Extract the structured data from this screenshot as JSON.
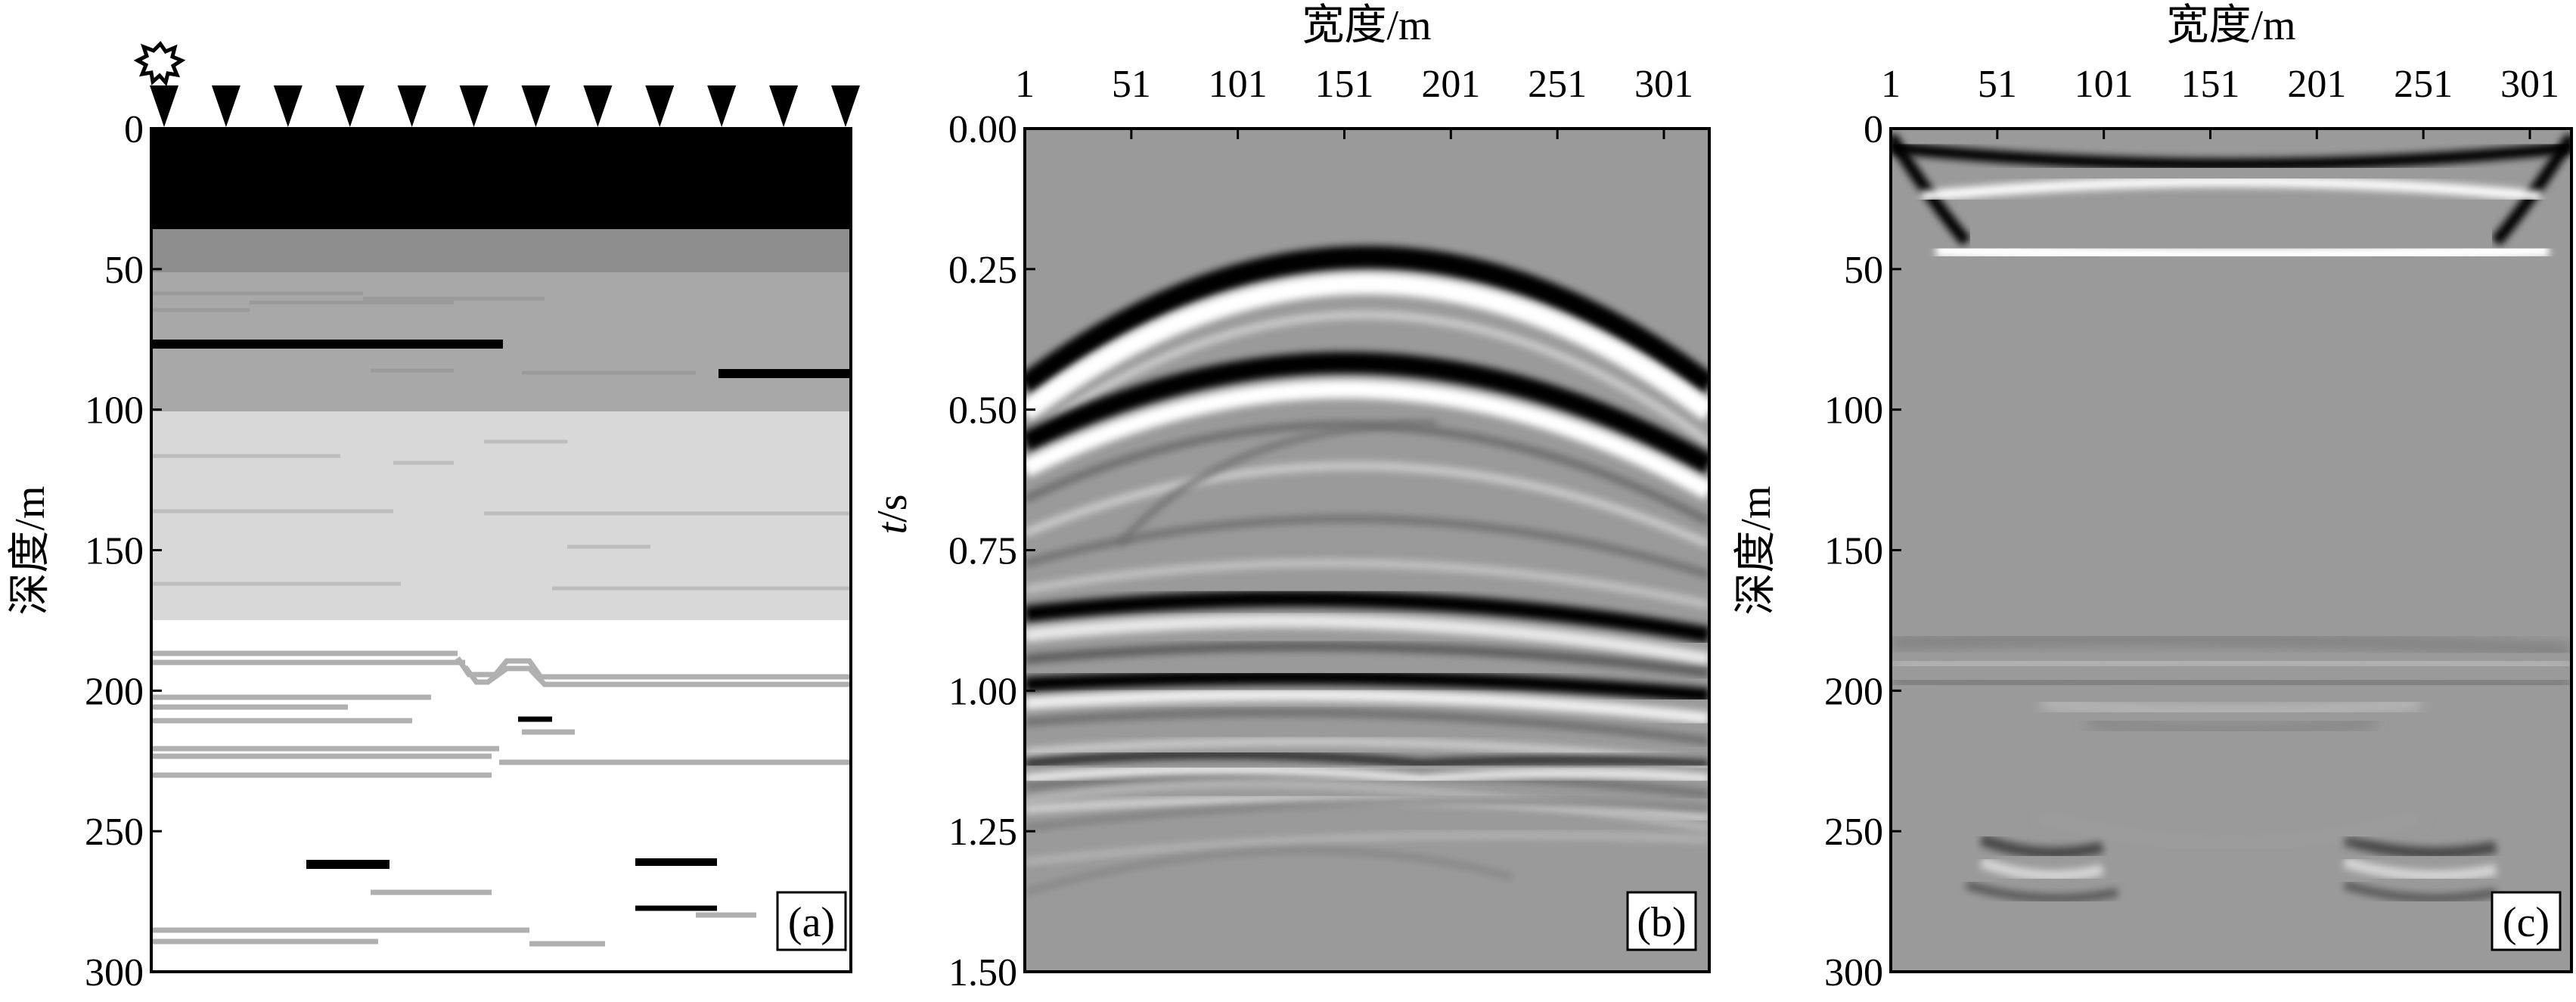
{
  "panel_a": {
    "label": "(a)",
    "ylabel": "深度/m",
    "y_ticks": [
      "0",
      "50",
      "100",
      "150",
      "200",
      "250",
      "300"
    ],
    "receiver_count": 12,
    "source_icon": "starburst-icon"
  },
  "panel_b": {
    "label": "(b)",
    "xlabel": "宽度/m",
    "ylabel_italic": "t",
    "ylabel_rest": "/s",
    "x_ticks": [
      "1",
      "51",
      "101",
      "151",
      "201",
      "251",
      "301"
    ],
    "y_ticks": [
      "0.00",
      "0.25",
      "0.50",
      "0.75",
      "1.00",
      "1.25",
      "1.50"
    ]
  },
  "panel_c": {
    "label": "(c)",
    "xlabel": "宽度/m",
    "ylabel": "深度/m",
    "x_ticks": [
      "1",
      "51",
      "101",
      "151",
      "201",
      "251",
      "301"
    ],
    "y_ticks": [
      "0",
      "50",
      "100",
      "150",
      "200",
      "250",
      "300"
    ]
  },
  "colors": {
    "black": "#000000",
    "dark_gray": "#8e8e8e",
    "mid_gray": "#a8a8a8",
    "light_gray": "#d8d8d8",
    "seismic_bg": "#9a9a9a",
    "white": "#ffffff"
  }
}
